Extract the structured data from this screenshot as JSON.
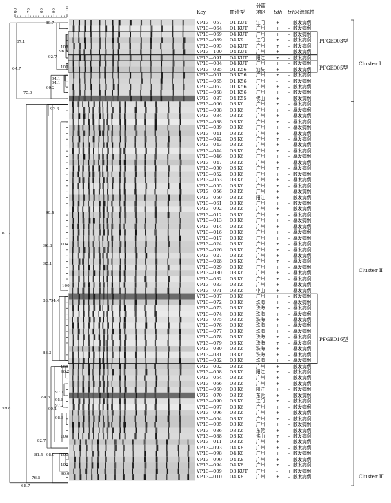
{
  "scale_ticks": [
    "60",
    "70",
    "80",
    "90",
    "100"
  ],
  "headers": {
    "key": "Key",
    "serotype": "血清型",
    "region_line1": "分离",
    "region_line2": "地区",
    "tdh": "tdh",
    "trh": "trh",
    "source": "来源属性"
  },
  "rows": [
    [
      "VP13—057",
      "O1∶KUT",
      "江门",
      "+",
      "–",
      "散发病例"
    ],
    [
      "VP13—064",
      "O1∶KUT",
      "广州",
      "+",
      "–",
      "散发病例"
    ],
    [
      "VP13—069",
      "O4∶KUT",
      "广州",
      "+",
      "–",
      "散发病例"
    ],
    [
      "VP13—089",
      "O4∶K9",
      "江门",
      "+",
      "–",
      "散发病例"
    ],
    [
      "VP13—095",
      "O4∶KUT",
      "广州",
      "+",
      "–",
      "散发病例"
    ],
    [
      "VP13—100",
      "O4∶KUT",
      "广州",
      "+",
      "–",
      "散发病例"
    ],
    [
      "VP13—091",
      "O4∶KUT",
      "阳江",
      "+",
      "–",
      "散发病例"
    ],
    [
      "VP13—084",
      "O4∶KUT",
      "广州",
      "+",
      "–",
      "散发病例"
    ],
    [
      "VP13—085",
      "O1∶K56",
      "汕头",
      "+",
      "–",
      "散发病例"
    ],
    [
      "VP13—001",
      "O3∶K56",
      "广州",
      "+",
      "–",
      "散发病例"
    ],
    [
      "VP13—065",
      "O1∶K56",
      "广州",
      "–",
      "–",
      "散发病例"
    ],
    [
      "VP13—067",
      "O1∶K56",
      "广州",
      "+",
      "–",
      "散发病例"
    ],
    [
      "VP13—068",
      "O1∶K56",
      "广州",
      "+",
      "–",
      "散发病例"
    ],
    [
      "VP13—087",
      "O4∶K55",
      "佛山",
      "+",
      "–",
      "散发病例"
    ],
    [
      "VP13—006",
      "O3∶K6",
      "广州",
      "+",
      "–",
      "暴发病例"
    ],
    [
      "VP13—008",
      "O3∶K6",
      "广州",
      "+",
      "–",
      "暴发病例"
    ],
    [
      "VP13—034",
      "O3∶K6",
      "广州",
      "+",
      "–",
      "暴发病例"
    ],
    [
      "VP13—038",
      "O3∶K6",
      "广州",
      "+",
      "–",
      "暴发病例"
    ],
    [
      "VP13—039",
      "O3∶K6",
      "广州",
      "+",
      "–",
      "暴发病例"
    ],
    [
      "VP13—041",
      "O3∶K6",
      "广州",
      "+",
      "–",
      "暴发病例"
    ],
    [
      "VP13—042",
      "O3∶K6",
      "广州",
      "+",
      "–",
      "暴发病例"
    ],
    [
      "VP13—043",
      "O3∶K6",
      "广州",
      "+",
      "–",
      "暴发病例"
    ],
    [
      "VP13—044",
      "O3∶K6",
      "广州",
      "+",
      "–",
      "暴发病例"
    ],
    [
      "VP13—046",
      "O3∶K6",
      "广州",
      "+",
      "–",
      "暴发病例"
    ],
    [
      "VP13—047",
      "O3∶K6",
      "广州",
      "+",
      "–",
      "暴发病例"
    ],
    [
      "VP13—050",
      "O3∶K6",
      "广州",
      "+",
      "–",
      "暴发病例"
    ],
    [
      "VP13—052",
      "O3∶K6",
      "广州",
      "+",
      "–",
      "散发病例"
    ],
    [
      "VP13—053",
      "O3∶K6",
      "广州",
      "+",
      "–",
      "暴发病例"
    ],
    [
      "VP13—055",
      "O3∶K6",
      "广州",
      "+",
      "–",
      "暴发病例"
    ],
    [
      "VP13—056",
      "O3∶K6",
      "广州",
      "+",
      "–",
      "暴发病例"
    ],
    [
      "VP13—059",
      "O3∶K6",
      "阳江",
      "+",
      "–",
      "散发病例"
    ],
    [
      "VP13—061",
      "O3∶K6",
      "广州",
      "+",
      "–",
      "散发病例"
    ],
    [
      "VP13—092",
      "O3∶K6",
      "广州",
      "+",
      "–",
      "散发病例"
    ],
    [
      "VP13—012",
      "O3∶K6",
      "广州",
      "+",
      "–",
      "暴发病例"
    ],
    [
      "VP13—013",
      "O3∶K6",
      "广州",
      "+",
      "–",
      "暴发病例"
    ],
    [
      "VP13—014",
      "O3∶K6",
      "广州",
      "+",
      "–",
      "暴发病例"
    ],
    [
      "VP13—016",
      "O3∶K6",
      "广州",
      "+",
      "–",
      "暴发病例"
    ],
    [
      "VP13—017",
      "O3∶K6",
      "广州",
      "+",
      "–",
      "暴发病例"
    ],
    [
      "VP13—024",
      "O3∶K6",
      "广州",
      "+",
      "–",
      "暴发病例"
    ],
    [
      "VP13—026",
      "O3∶K6",
      "广州",
      "+",
      "–",
      "暴发病例"
    ],
    [
      "VP13—027",
      "O3∶K6",
      "广州",
      "+",
      "–",
      "暴发病例"
    ],
    [
      "VP13—028",
      "O3∶K6",
      "广州",
      "+",
      "–",
      "暴发病例"
    ],
    [
      "VP13—029",
      "O3∶K6",
      "广州",
      "+",
      "–",
      "暴发病例"
    ],
    [
      "VP13—030",
      "O3∶K6",
      "广州",
      "+",
      "–",
      "暴发病例"
    ],
    [
      "VP13—032",
      "O3∶K6",
      "广州",
      "+",
      "–",
      "暴发病例"
    ],
    [
      "VP13—033",
      "O3∶K6",
      "广州",
      "+",
      "–",
      "暴发病例"
    ],
    [
      "VP13—071",
      "O3∶K6",
      "中山",
      "+",
      "–",
      "暴发病例"
    ],
    [
      "VP13—007",
      "O3∶K6",
      "广州",
      "+",
      "–",
      "散发病例"
    ],
    [
      "VP13—072",
      "O3∶K6",
      "珠海",
      "+",
      "–",
      "暴发病例"
    ],
    [
      "VP13—073",
      "O3∶K6",
      "珠海",
      "+",
      "–",
      "暴发病例"
    ],
    [
      "VP13—074",
      "O3∶K6",
      "珠海",
      "+",
      "–",
      "暴发病例"
    ],
    [
      "VP13—075",
      "O3∶K6",
      "珠海",
      "+",
      "–",
      "暴发病例"
    ],
    [
      "VP13—076",
      "O3∶K6",
      "珠海",
      "+",
      "–",
      "暴发病例"
    ],
    [
      "VP13—077",
      "O3∶K6",
      "珠海",
      "+",
      "–",
      "暴发病例"
    ],
    [
      "VP13—078",
      "O3∶K6",
      "珠海",
      "+",
      "–",
      "暴发病例"
    ],
    [
      "VP13—079",
      "O3∶K6",
      "珠海",
      "+",
      "–",
      "暴发病例"
    ],
    [
      "VP13—080",
      "O3∶K6",
      "珠海",
      "+",
      "–",
      "暴发病例"
    ],
    [
      "VP13—081",
      "O3∶K6",
      "珠海",
      "+",
      "–",
      "暴发病例"
    ],
    [
      "VP13—082",
      "O3∶K6",
      "珠海",
      "+",
      "–",
      "暴发病例"
    ],
    [
      "VP13—002",
      "O3∶K6",
      "广州",
      "+",
      "–",
      "散发病例"
    ],
    [
      "VP13—058",
      "O3∶K6",
      "阳江",
      "+",
      "–",
      "散发病例"
    ],
    [
      "VP13—054",
      "O3∶K6",
      "广州",
      "+",
      "–",
      "散发病例"
    ],
    [
      "VP13—066",
      "O3∶K6",
      "广州",
      "+",
      "–",
      "散发病例"
    ],
    [
      "VP13—060",
      "O3∶K6",
      "阳江",
      "+",
      "–",
      "散发病例"
    ],
    [
      "VP13—070",
      "O3∶K6",
      "东莞",
      "+",
      "–",
      "散发病例"
    ],
    [
      "VP13—090",
      "O3∶K6",
      "江门",
      "+",
      "–",
      "散发病例"
    ],
    [
      "VP13—097",
      "O3∶K6",
      "广州",
      "+",
      "–",
      "散发病例"
    ],
    [
      "VP13—096",
      "O3∶K6",
      "广州",
      "+",
      "–",
      "散发病例"
    ],
    [
      "VP13—004",
      "O3∶K6",
      "广州",
      "+",
      "–",
      "散发病例"
    ],
    [
      "VP13—005",
      "O3∶K6",
      "广州",
      "+",
      "–",
      "散发病例"
    ],
    [
      "VP13—086",
      "O3∶K6",
      "东莞",
      "+",
      "–",
      "散发病例"
    ],
    [
      "VP13—088",
      "O3∶K6",
      "佛山",
      "+",
      "–",
      "散发病例"
    ],
    [
      "VP13—011",
      "O3∶K6",
      "广州",
      "+",
      "–",
      "散发病例"
    ],
    [
      "VP13—093",
      "O4∶K8",
      "广州",
      "+",
      "–",
      "散发病例"
    ],
    [
      "VP13—098",
      "O4∶K8",
      "广州",
      "+",
      "–",
      "散发病例"
    ],
    [
      "VP13—099",
      "O4∶K8",
      "广州",
      "+",
      "–",
      "散发病例"
    ],
    [
      "VP13—094",
      "O4∶K8",
      "广州",
      "+",
      "–",
      "散发病例"
    ],
    [
      "VP13—009",
      "O3∶KUT",
      "广州",
      "–",
      "+",
      "散发病例"
    ],
    [
      "VP13—010",
      "O4∶K8",
      "广州",
      "+",
      "–",
      "散发病例"
    ]
  ],
  "pfge_groups": [
    {
      "label": "PFGE003型"
    },
    {
      "label": "PFGE005型"
    },
    {
      "label": "PFGE016型"
    }
  ],
  "clusters": [
    {
      "label": "Cluster Ⅰ"
    },
    {
      "label": "Cluster Ⅱ"
    },
    {
      "label": "Cluster Ⅲ"
    }
  ],
  "node_values": [
    "89.7",
    "67.1",
    "100",
    "96.6",
    "92.7",
    "100",
    "64.7",
    "94.1",
    "94.1",
    "90.2",
    "75.0",
    "92.3",
    "90.4",
    "100",
    "96.8",
    "95.1",
    "100",
    "88.7",
    "94.4",
    "88.3",
    "100",
    "96.2",
    "84.6",
    "97.1",
    "95.8",
    "97.2",
    "90.1",
    "98.8",
    "100",
    "82.7",
    "81.5",
    "98.9",
    "100",
    "100",
    "96.0",
    "76.5",
    "68.7",
    "61.2",
    "59.8"
  ]
}
